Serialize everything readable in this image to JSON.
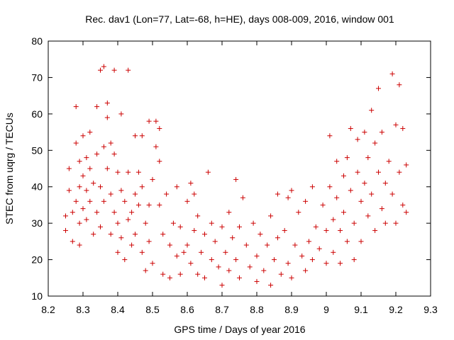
{
  "chart_data": {
    "type": "scatter",
    "title": "Rec. dav1 (Lon=77, Lat=-68, h=HE), days 008-009, 2016, window 001",
    "xlabel": "GPS time / Days of year 2016",
    "ylabel": "STEC from uqrg / TECUs",
    "xlim": [
      8.2,
      9.3
    ],
    "ylim": [
      10,
      80
    ],
    "xticks": [
      "8.2",
      "8.3",
      "8.4",
      "8.5",
      "8.6",
      "8.7",
      "8.8",
      "8.9",
      "9",
      "9.1",
      "9.2",
      "9.3"
    ],
    "yticks": [
      "10",
      "20",
      "30",
      "40",
      "50",
      "60",
      "70",
      "80"
    ],
    "marker": "+",
    "color": "#cc0000",
    "grid": false,
    "legend": "none",
    "points": [
      [
        8.25,
        32
      ],
      [
        8.25,
        28
      ],
      [
        8.26,
        45
      ],
      [
        8.26,
        39
      ],
      [
        8.27,
        33
      ],
      [
        8.27,
        25
      ],
      [
        8.28,
        62
      ],
      [
        8.28,
        52
      ],
      [
        8.28,
        36
      ],
      [
        8.29,
        47
      ],
      [
        8.29,
        40
      ],
      [
        8.29,
        30
      ],
      [
        8.29,
        24
      ],
      [
        8.3,
        54
      ],
      [
        8.3,
        43
      ],
      [
        8.3,
        34
      ],
      [
        8.31,
        48
      ],
      [
        8.31,
        39
      ],
      [
        8.31,
        31
      ],
      [
        8.32,
        55
      ],
      [
        8.32,
        45
      ],
      [
        8.32,
        36
      ],
      [
        8.33,
        41
      ],
      [
        8.33,
        27
      ],
      [
        8.34,
        62
      ],
      [
        8.34,
        49
      ],
      [
        8.34,
        33
      ],
      [
        8.35,
        72
      ],
      [
        8.35,
        40
      ],
      [
        8.35,
        29
      ],
      [
        8.36,
        73
      ],
      [
        8.36,
        51
      ],
      [
        8.36,
        36
      ],
      [
        8.37,
        63
      ],
      [
        8.37,
        59
      ],
      [
        8.37,
        45
      ],
      [
        8.38,
        52
      ],
      [
        8.38,
        38
      ],
      [
        8.38,
        27
      ],
      [
        8.39,
        72
      ],
      [
        8.39,
        49
      ],
      [
        8.39,
        33
      ],
      [
        8.4,
        44
      ],
      [
        8.4,
        30
      ],
      [
        8.4,
        22
      ],
      [
        8.41,
        60
      ],
      [
        8.41,
        39
      ],
      [
        8.41,
        26
      ],
      [
        8.42,
        36
      ],
      [
        8.42,
        20
      ],
      [
        8.43,
        72
      ],
      [
        8.43,
        44
      ],
      [
        8.43,
        31
      ],
      [
        8.44,
        33
      ],
      [
        8.44,
        24
      ],
      [
        8.45,
        54
      ],
      [
        8.45,
        38
      ],
      [
        8.45,
        27
      ],
      [
        8.46,
        44
      ],
      [
        8.46,
        35
      ],
      [
        8.47,
        54
      ],
      [
        8.47,
        40
      ],
      [
        8.47,
        22
      ],
      [
        8.48,
        30
      ],
      [
        8.48,
        17
      ],
      [
        8.49,
        58
      ],
      [
        8.49,
        35
      ],
      [
        8.49,
        25
      ],
      [
        8.5,
        42
      ],
      [
        8.5,
        19
      ],
      [
        8.51,
        58
      ],
      [
        8.51,
        51
      ],
      [
        8.52,
        56
      ],
      [
        8.52,
        47
      ],
      [
        8.52,
        35
      ],
      [
        8.53,
        27
      ],
      [
        8.53,
        16
      ],
      [
        8.54,
        38
      ],
      [
        8.55,
        24
      ],
      [
        8.55,
        15
      ],
      [
        8.56,
        30
      ],
      [
        8.57,
        40
      ],
      [
        8.57,
        21
      ],
      [
        8.58,
        29
      ],
      [
        8.58,
        16
      ],
      [
        8.59,
        22
      ],
      [
        8.6,
        36
      ],
      [
        8.6,
        24
      ],
      [
        8.61,
        41
      ],
      [
        8.61,
        19
      ],
      [
        8.62,
        38
      ],
      [
        8.62,
        28
      ],
      [
        8.63,
        32
      ],
      [
        8.63,
        16
      ],
      [
        8.64,
        22
      ],
      [
        8.65,
        27
      ],
      [
        8.65,
        15
      ],
      [
        8.66,
        44
      ],
      [
        8.67,
        30
      ],
      [
        8.67,
        20
      ],
      [
        8.68,
        25
      ],
      [
        8.69,
        18
      ],
      [
        8.7,
        29
      ],
      [
        8.7,
        13
      ],
      [
        8.71,
        22
      ],
      [
        8.72,
        33
      ],
      [
        8.72,
        17
      ],
      [
        8.73,
        26
      ],
      [
        8.74,
        42
      ],
      [
        8.74,
        20
      ],
      [
        8.75,
        29
      ],
      [
        8.75,
        15
      ],
      [
        8.76,
        37
      ],
      [
        8.77,
        24
      ],
      [
        8.78,
        18
      ],
      [
        8.79,
        30
      ],
      [
        8.8,
        21
      ],
      [
        8.8,
        14
      ],
      [
        8.81,
        27
      ],
      [
        8.82,
        17
      ],
      [
        8.83,
        24
      ],
      [
        8.84,
        32
      ],
      [
        8.84,
        13
      ],
      [
        8.85,
        20
      ],
      [
        8.86,
        38
      ],
      [
        8.86,
        26
      ],
      [
        8.87,
        16
      ],
      [
        8.88,
        28
      ],
      [
        8.89,
        37
      ],
      [
        8.89,
        19
      ],
      [
        8.9,
        39
      ],
      [
        8.9,
        15
      ],
      [
        8.91,
        24
      ],
      [
        8.92,
        33
      ],
      [
        8.93,
        21
      ],
      [
        8.94,
        36
      ],
      [
        8.94,
        17
      ],
      [
        8.95,
        25
      ],
      [
        8.96,
        40
      ],
      [
        8.96,
        20
      ],
      [
        8.97,
        29
      ],
      [
        8.98,
        23
      ],
      [
        8.99,
        35
      ],
      [
        9.0,
        28
      ],
      [
        9.0,
        19
      ],
      [
        9.01,
        54
      ],
      [
        9.01,
        40
      ],
      [
        9.02,
        31
      ],
      [
        9.02,
        22
      ],
      [
        9.03,
        47
      ],
      [
        9.03,
        37
      ],
      [
        9.04,
        28
      ],
      [
        9.04,
        19
      ],
      [
        9.05,
        43
      ],
      [
        9.05,
        33
      ],
      [
        9.06,
        48
      ],
      [
        9.06,
        25
      ],
      [
        9.07,
        56
      ],
      [
        9.07,
        39
      ],
      [
        9.08,
        30
      ],
      [
        9.08,
        20
      ],
      [
        9.09,
        53
      ],
      [
        9.09,
        44
      ],
      [
        9.1,
        36
      ],
      [
        9.1,
        25
      ],
      [
        9.11,
        55
      ],
      [
        9.11,
        41
      ],
      [
        9.12,
        48
      ],
      [
        9.12,
        32
      ],
      [
        9.13,
        61
      ],
      [
        9.13,
        38
      ],
      [
        9.14,
        52
      ],
      [
        9.14,
        28
      ],
      [
        9.15,
        67
      ],
      [
        9.15,
        44
      ],
      [
        9.16,
        55
      ],
      [
        9.16,
        34
      ],
      [
        9.17,
        41
      ],
      [
        9.17,
        30
      ],
      [
        9.18,
        47
      ],
      [
        9.19,
        71
      ],
      [
        9.19,
        38
      ],
      [
        9.2,
        57
      ],
      [
        9.2,
        30
      ],
      [
        9.21,
        68
      ],
      [
        9.21,
        44
      ],
      [
        9.22,
        56
      ],
      [
        9.22,
        35
      ],
      [
        9.23,
        46
      ],
      [
        9.23,
        33
      ]
    ]
  }
}
